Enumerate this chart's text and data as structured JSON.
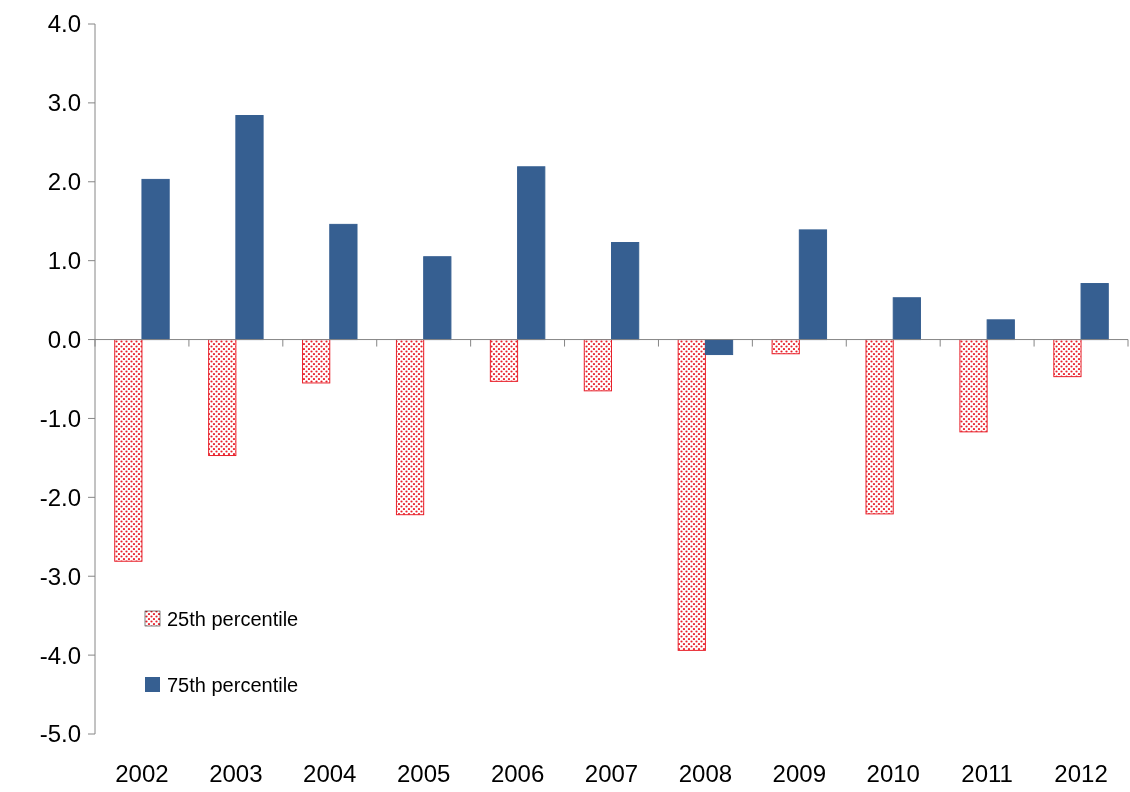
{
  "chart_data": {
    "type": "bar",
    "categories": [
      "2002",
      "2003",
      "2004",
      "2005",
      "2006",
      "2007",
      "2008",
      "2009",
      "2010",
      "2011",
      "2012"
    ],
    "series": [
      {
        "name": "25th percentile",
        "color": "#e8202a",
        "values": [
          -2.81,
          -1.47,
          -0.55,
          -2.22,
          -0.53,
          -0.65,
          -3.94,
          -0.18,
          -2.21,
          -1.17,
          -0.47
        ]
      },
      {
        "name": "75th percentile",
        "color": "#365f91",
        "values": [
          2.03,
          2.84,
          1.46,
          1.05,
          2.19,
          1.23,
          -0.19,
          1.39,
          0.53,
          0.25,
          0.71
        ]
      }
    ],
    "ylim": [
      -5,
      4
    ],
    "yticks": [
      {
        "value": -5,
        "label": "-5.0"
      },
      {
        "value": -4,
        "label": "-4.0"
      },
      {
        "value": -3,
        "label": "-3.0"
      },
      {
        "value": -2,
        "label": "-2.0"
      },
      {
        "value": -1,
        "label": "-1.0"
      },
      {
        "value": 0,
        "label": "0.0"
      },
      {
        "value": 1,
        "label": "1.0"
      },
      {
        "value": 2,
        "label": "2.0"
      },
      {
        "value": 3,
        "label": "3.0"
      },
      {
        "value": 4,
        "label": "4.0"
      }
    ],
    "legend": "bottom left"
  }
}
